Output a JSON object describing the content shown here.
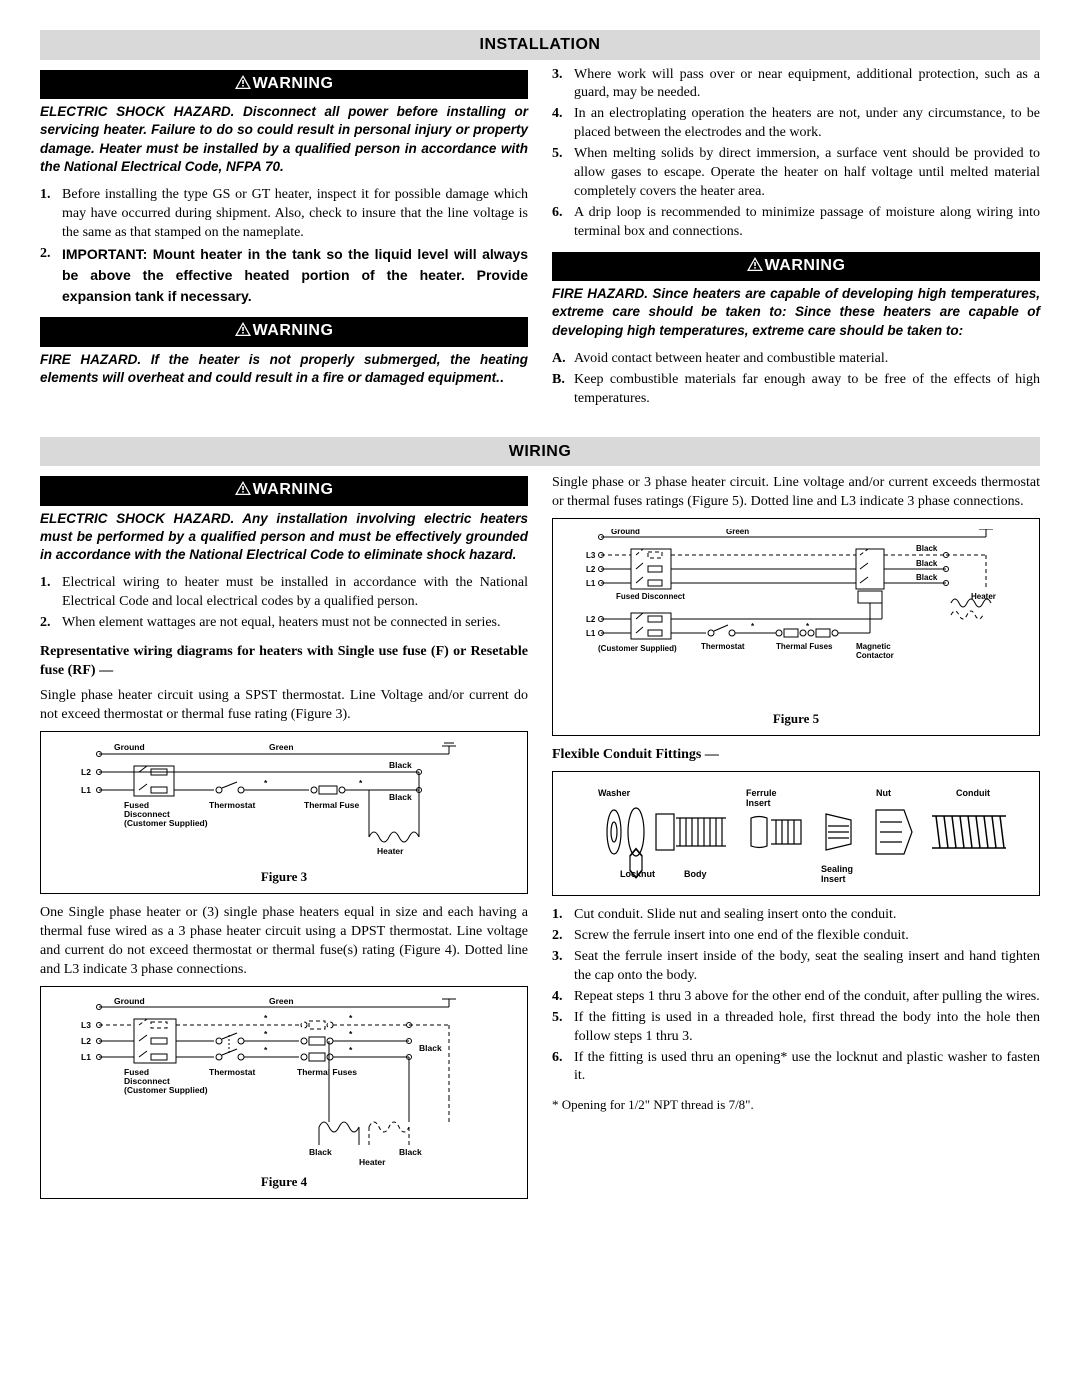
{
  "sections": {
    "installation": "INSTALLATION",
    "wiring": "WIRING"
  },
  "warning_label": "WARNING",
  "install_left": {
    "warn1": "ELECTRIC SHOCK HAZARD. Disconnect all power before installing or servicing heater. Failure to do so could result in personal injury or property damage. Heater must be installed by a qualified person in accordance with the National Electrical Code, NFPA 70.",
    "items": [
      "Before installing the type GS or GT heater, inspect it for possible damage which may have occurred during shipment. Also, check to insure that the line voltage is the same as that stamped on the nameplate.",
      "IMPORTANT: Mount heater in the tank so the liquid level will always be above the effective heated portion of the heater. Provide expansion tank if necessary."
    ],
    "warn2": "FIRE HAZARD. If the heater is not properly submerged, the heating elements will overheat and could result in a fire or damaged equipment."
  },
  "install_right": {
    "items": [
      "Where work will pass over or near equipment, additional protection, such as a guard, may be needed.",
      "In an electroplating operation the heaters are not, under any circumstance, to be placed between the electrodes and the work.",
      "When melting solids by direct immersion, a surface vent should be provided to allow gases to escape. Operate the heater on half voltage until melted material completely covers the heater area.",
      "A drip loop is recommended to minimize passage of moisture along wiring into terminal box and connections."
    ],
    "warn": "FIRE HAZARD. Since heaters are capable of developing high temperatures, extreme care should be taken to: Since these heaters are capable of developing high temperatures, extreme care should be taken to:",
    "alpha": [
      "Avoid contact between heater and combustible material.",
      "Keep combustible materials far enough away to be free of the effects of high temperatures."
    ]
  },
  "wiring_left": {
    "warn": "ELECTRIC SHOCK HAZARD. Any installation involving electric heaters must be performed by a qualified person and must be effectively grounded in accordance with the National Electrical Code to eliminate shock hazard.",
    "items": [
      "Electrical wiring to heater must be installed in accordance with the National Electrical Code and local electrical codes by a qualified person.",
      "When element wattages are not equal, heaters must not be connected in series."
    ],
    "rep_heading": "Representative wiring diagrams for heaters with Single use fuse (F) or Resetable fuse (RF) —",
    "para1": "Single phase heater circuit using a SPST thermostat. Line Voltage and/or current do not exceed thermostat or thermal fuse rating (Figure 3).",
    "fig3": {
      "caption": "Figure 3",
      "labels": {
        "ground": "Ground",
        "green": "Green",
        "black": "Black",
        "l1": "L1",
        "l2": "L2",
        "fused": "Fused\nDisconnect\n(Customer Supplied)",
        "thermostat": "Thermostat",
        "thermal_fuse": "Thermal Fuse",
        "heater": "Heater",
        "star": "*"
      }
    },
    "para2": "One Single phase heater or (3) single phase heaters equal in size and each having a thermal fuse wired as a 3 phase heater circuit using a DPST thermostat. Line voltage and current do not exceed thermostat or thermal fuse(s) rating (Figure 4). Dotted line and L3 indicate 3 phase connections.",
    "fig4": {
      "caption": "Figure 4",
      "labels": {
        "ground": "Ground",
        "green": "Green",
        "black": "Black",
        "l1": "L1",
        "l2": "L2",
        "l3": "L3",
        "fused": "Fused\nDisconnect\n(Customer Supplied)",
        "thermostat": "Thermostat",
        "thermal_fuses": "Thermal Fuses",
        "heater": "Heater",
        "star": "*"
      }
    }
  },
  "wiring_right": {
    "para_top": "Single phase or 3 phase heater circuit. Line voltage and/or current exceeds thermostat or thermal fuses ratings (Figure 5). Dotted line and L3 indicate 3 phase connections.",
    "fig5": {
      "caption": "Figure 5",
      "labels": {
        "ground": "Ground",
        "green": "Green",
        "black": "Black",
        "l1": "L1",
        "l2": "L2",
        "l3": "L3",
        "fused": "Fused Disconnect",
        "cust": "(Customer Supplied)",
        "thermostat": "Thermostat",
        "thermal_fuses": "Thermal Fuses",
        "magnetic": "Magnetic\nContactor",
        "heater": "Heater",
        "star": "*"
      }
    },
    "flex_heading": "Flexible Conduit Fittings —",
    "fig_conduit": {
      "labels": {
        "washer": "Washer",
        "ferrule": "Ferrule\nInsert",
        "nut": "Nut",
        "conduit": "Conduit",
        "locknut": "Locknut",
        "body": "Body",
        "sealing": "Sealing\nInsert"
      }
    },
    "items": [
      "Cut conduit. Slide nut and sealing insert onto the conduit.",
      "Screw the ferrule insert into one end of the flexible conduit.",
      "Seat the ferrule insert inside of the body, seat the sealing insert and hand tighten the cap onto the body.",
      "Repeat steps 1 thru 3 above for the other end of the conduit, after pulling the wires.",
      "If the fitting is used in a threaded hole, first thread the body into the hole then follow steps 1 thru 3.",
      "If the fitting is used thru an opening* use the locknut and plastic washer to fasten it."
    ],
    "footnote": "* Opening for 1/2\" NPT thread is 7/8\"."
  }
}
